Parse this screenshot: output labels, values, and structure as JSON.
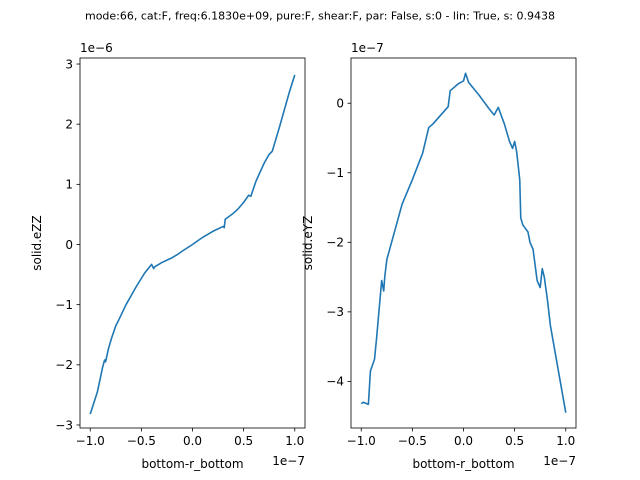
{
  "figure_title": "mode:66, cat:F, freq:6.1830e+09, pure:F, shear:F, par: False, s:0 - lin: True, s: 0.9438",
  "series_color": "#1f77b4",
  "chart_data": [
    {
      "type": "line",
      "xlabel": "bottom-r_bottom",
      "ylabel": "solid.eZZ",
      "x_multiplier": "1e−7",
      "y_multiplier": "1e−6",
      "xlim": [
        -1.1,
        1.1
      ],
      "ylim": [
        -3.05,
        3.1
      ],
      "x_ticks": [
        -1.0,
        -0.5,
        0.0,
        0.5,
        1.0
      ],
      "x_tick_labels": [
        "−1.0",
        "−0.5",
        "0.0",
        "0.5",
        "1.0"
      ],
      "y_ticks": [
        -3,
        -2,
        -1,
        0,
        1,
        2,
        3
      ],
      "y_tick_labels": [
        "−3",
        "−2",
        "−1",
        "0",
        "1",
        "2",
        "3"
      ],
      "grid": false,
      "series": [
        {
          "x": [
            -1.0,
            -0.93,
            -0.88,
            -0.86,
            -0.85,
            -0.82,
            -0.79,
            -0.77,
            -0.75,
            -0.72,
            -0.65,
            -0.55,
            -0.47,
            -0.4,
            -0.38,
            -0.37,
            -0.3,
            -0.2,
            -0.15,
            -0.1,
            0.0,
            0.1,
            0.2,
            0.3,
            0.31,
            0.32,
            0.4,
            0.45,
            0.5,
            0.55,
            0.57,
            0.62,
            0.7,
            0.75,
            0.78,
            0.85,
            0.9,
            0.95,
            1.0
          ],
          "y": [
            -2.82,
            -2.45,
            -2.05,
            -1.92,
            -1.95,
            -1.72,
            -1.55,
            -1.45,
            -1.35,
            -1.25,
            -1.0,
            -0.7,
            -0.48,
            -0.33,
            -0.4,
            -0.37,
            -0.3,
            -0.22,
            -0.17,
            -0.11,
            0.0,
            0.12,
            0.22,
            0.3,
            0.28,
            0.42,
            0.52,
            0.6,
            0.7,
            0.82,
            0.8,
            1.05,
            1.35,
            1.5,
            1.55,
            1.95,
            2.25,
            2.55,
            2.82
          ]
        }
      ]
    },
    {
      "type": "line",
      "xlabel": "bottom-r_bottom",
      "ylabel": "solid.eYZ",
      "x_multiplier": "1e−7",
      "y_multiplier": "1e−7",
      "xlim": [
        -1.1,
        1.1
      ],
      "ylim": [
        -4.67,
        0.65
      ],
      "x_ticks": [
        -1.0,
        -0.5,
        0.0,
        0.5,
        1.0
      ],
      "x_tick_labels": [
        "−1.0",
        "−0.5",
        "0.0",
        "0.5",
        "1.0"
      ],
      "y_ticks": [
        -4,
        -3,
        -2,
        -1,
        0
      ],
      "y_tick_labels": [
        "−4",
        "−3",
        "−2",
        "−1",
        "0"
      ],
      "grid": false,
      "series": [
        {
          "x": [
            -1.0,
            -0.98,
            -0.93,
            -0.91,
            -0.87,
            -0.85,
            -0.8,
            -0.78,
            -0.77,
            -0.75,
            -0.6,
            -0.5,
            -0.4,
            -0.34,
            -0.3,
            -0.15,
            -0.13,
            -0.05,
            0.0,
            0.02,
            0.05,
            0.15,
            0.25,
            0.3,
            0.34,
            0.4,
            0.45,
            0.48,
            0.5,
            0.52,
            0.55,
            0.56,
            0.58,
            0.63,
            0.65,
            0.68,
            0.72,
            0.75,
            0.77,
            0.79,
            0.82,
            0.85,
            1.0
          ],
          "y": [
            -4.32,
            -4.3,
            -4.33,
            -3.85,
            -3.68,
            -3.38,
            -2.55,
            -2.7,
            -2.5,
            -2.25,
            -1.45,
            -1.1,
            -0.72,
            -0.35,
            -0.3,
            -0.05,
            0.18,
            0.28,
            0.32,
            0.43,
            0.3,
            0.12,
            -0.08,
            -0.17,
            -0.06,
            -0.3,
            -0.55,
            -0.65,
            -0.55,
            -0.7,
            -1.1,
            -1.65,
            -1.75,
            -1.85,
            -2.0,
            -2.1,
            -2.55,
            -2.65,
            -2.38,
            -2.5,
            -2.82,
            -3.2,
            -4.45
          ]
        }
      ]
    }
  ]
}
